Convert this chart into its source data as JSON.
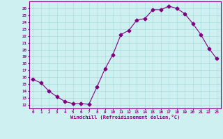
{
  "x": [
    0,
    1,
    2,
    3,
    4,
    5,
    6,
    7,
    8,
    9,
    10,
    11,
    12,
    13,
    14,
    15,
    16,
    17,
    18,
    19,
    20,
    21,
    22,
    23
  ],
  "y": [
    15.7,
    15.2,
    14.0,
    13.2,
    12.5,
    12.2,
    12.2,
    12.1,
    14.6,
    17.2,
    19.3,
    22.2,
    22.8,
    24.3,
    24.5,
    25.8,
    25.8,
    26.3,
    26.0,
    25.2,
    23.8,
    22.2,
    20.2,
    18.7
  ],
  "line_color": "#800080",
  "marker": "D",
  "marker_size": 2.5,
  "bg_color": "#cff0f0",
  "grid_color": "#aadddd",
  "xlabel": "Windchill (Refroidissement éolien,°C)",
  "xlabel_color": "#800080",
  "ylabel_ticks": [
    12,
    13,
    14,
    15,
    16,
    17,
    18,
    19,
    20,
    21,
    22,
    23,
    24,
    25,
    26
  ],
  "xlim": [
    -0.5,
    23.5
  ],
  "ylim": [
    11.5,
    27.0
  ],
  "tick_color": "#800080",
  "spine_color": "#800080",
  "title": ""
}
